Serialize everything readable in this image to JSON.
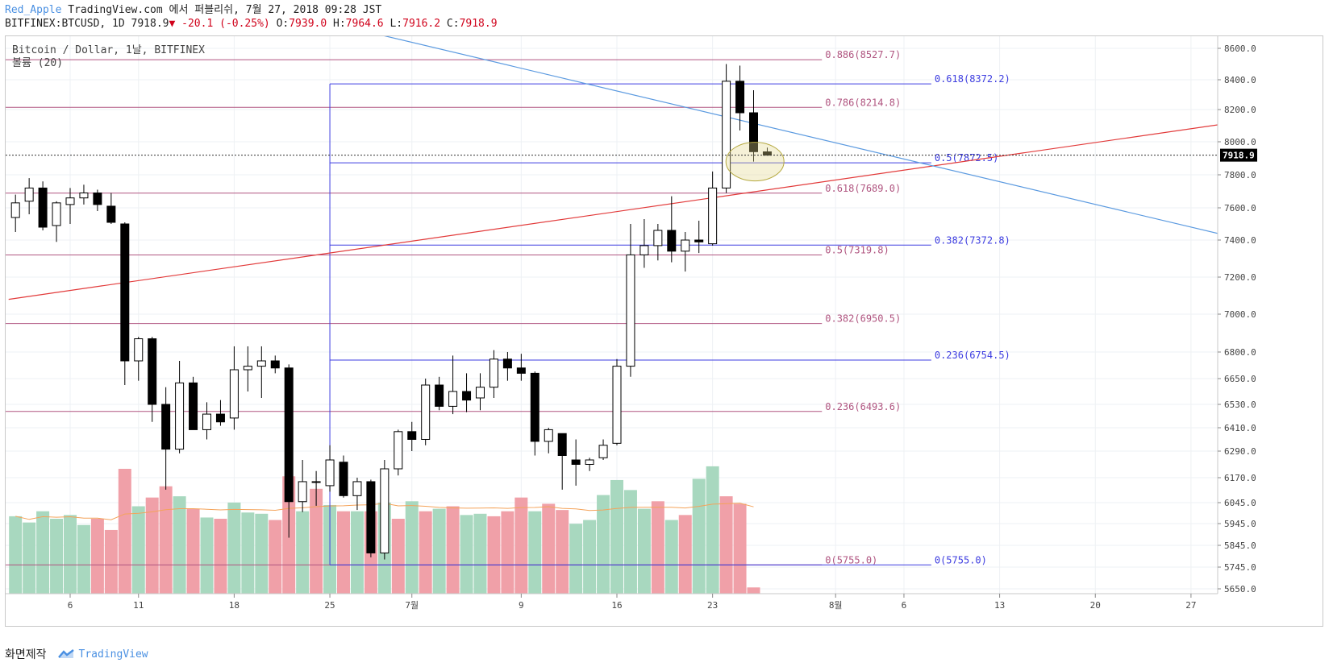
{
  "header": {
    "author": "Red_Apple",
    "published": "TradingView.com 에서 퍼블리쉬, 7월 27, 2018 09:28 JST",
    "symbol_line": "BITFINEX:BTCUSD, 1D 7918.9",
    "change": "▼ -20.1 (-0.25%)",
    "o_label": "O:",
    "o_val": "7939.0",
    "h_label": "H:",
    "h_val": "7964.6",
    "l_label": "L:",
    "l_val": "7916.2",
    "c_label": "C:",
    "c_val": "7918.9"
  },
  "legend": {
    "title": "Bitcoin / Dollar, 1날, BITFINEX",
    "volume": "볼륨 (20)"
  },
  "footer": {
    "made_with": "화면제작",
    "brand": "TradingView"
  },
  "colors": {
    "up_volume": "#a8d8bf",
    "down_volume": "#f0a0a8",
    "fib1": "#b05580",
    "fib2": "#3c3ce0",
    "trend_red": "#e23a3a",
    "trend_blue": "#5b9ae0",
    "ma": "#f4a35a",
    "ellipse": "#b5a940"
  },
  "chart_data": {
    "type": "candlestick",
    "title": "Bitcoin / Dollar, 1날, BITFINEX",
    "last_price": "7918.9",
    "y_ticks": [
      8600,
      8400,
      8200,
      8000,
      7800,
      7600,
      7400,
      7200,
      7000,
      6800,
      6650,
      6530,
      6410,
      6290,
      6170,
      6045,
      5945,
      5845,
      5745,
      5650
    ],
    "y_tick_labels": [
      "8600.0",
      "8400.0",
      "8200.0",
      "8000.0",
      "7800.0",
      "7600.0",
      "7400.0",
      "7200.0",
      "7000.0",
      "6800.0",
      "6650.0",
      "6530.0",
      "6410.0",
      "6290.0",
      "6170.0",
      "6045.0",
      "5945.0",
      "5845.0",
      "5745.0",
      "5650.0"
    ],
    "x_ticks": [
      {
        "day": 0,
        "label": "6"
      },
      {
        "day": 5,
        "label": "11"
      },
      {
        "day": 12,
        "label": "18"
      },
      {
        "day": 19,
        "label": "25"
      },
      {
        "day": 25,
        "label": "7월"
      },
      {
        "day": 33,
        "label": "9"
      },
      {
        "day": 40,
        "label": "16"
      },
      {
        "day": 47,
        "label": "23"
      },
      {
        "day": 56,
        "label": "8월"
      },
      {
        "day": 61,
        "label": "6"
      },
      {
        "day": 68,
        "label": "13"
      },
      {
        "day": 75,
        "label": "20"
      },
      {
        "day": 82,
        "label": "27"
      }
    ],
    "candles": [
      {
        "day": -4,
        "o": 7540,
        "h": 7680,
        "l": 7450,
        "c": 7630
      },
      {
        "day": -3,
        "o": 7640,
        "h": 7780,
        "l": 7560,
        "c": 7720
      },
      {
        "day": -2,
        "o": 7720,
        "h": 7760,
        "l": 7460,
        "c": 7480
      },
      {
        "day": -1,
        "o": 7490,
        "h": 7640,
        "l": 7390,
        "c": 7630
      },
      {
        "day": 0,
        "o": 7620,
        "h": 7720,
        "l": 7500,
        "c": 7660
      },
      {
        "day": 1,
        "o": 7660,
        "h": 7740,
        "l": 7620,
        "c": 7690
      },
      {
        "day": 2,
        "o": 7690,
        "h": 7710,
        "l": 7580,
        "c": 7620
      },
      {
        "day": 3,
        "o": 7610,
        "h": 7690,
        "l": 7500,
        "c": 7510
      },
      {
        "day": 4,
        "o": 7500,
        "h": 7510,
        "l": 6620,
        "c": 6750
      },
      {
        "day": 5,
        "o": 6750,
        "h": 6880,
        "l": 6640,
        "c": 6870
      },
      {
        "day": 6,
        "o": 6870,
        "h": 6880,
        "l": 6440,
        "c": 6530
      },
      {
        "day": 7,
        "o": 6530,
        "h": 6610,
        "l": 6110,
        "c": 6300
      },
      {
        "day": 8,
        "o": 6300,
        "h": 6750,
        "l": 6280,
        "c": 6630
      },
      {
        "day": 9,
        "o": 6630,
        "h": 6660,
        "l": 6400,
        "c": 6400
      },
      {
        "day": 10,
        "o": 6400,
        "h": 6540,
        "l": 6350,
        "c": 6480
      },
      {
        "day": 11,
        "o": 6480,
        "h": 6550,
        "l": 6420,
        "c": 6440
      },
      {
        "day": 12,
        "o": 6460,
        "h": 6830,
        "l": 6400,
        "c": 6700
      },
      {
        "day": 13,
        "o": 6700,
        "h": 6830,
        "l": 6590,
        "c": 6720
      },
      {
        "day": 14,
        "o": 6720,
        "h": 6830,
        "l": 6560,
        "c": 6750
      },
      {
        "day": 15,
        "o": 6750,
        "h": 6780,
        "l": 6680,
        "c": 6710
      },
      {
        "day": 16,
        "o": 6710,
        "h": 6730,
        "l": 5880,
        "c": 6050
      },
      {
        "day": 17,
        "o": 6050,
        "h": 6250,
        "l": 6000,
        "c": 6150
      },
      {
        "day": 18,
        "o": 6150,
        "h": 6200,
        "l": 6030,
        "c": 6150
      },
      {
        "day": 19,
        "o": 6130,
        "h": 6320,
        "l": 6100,
        "c": 6250
      },
      {
        "day": 20,
        "o": 6240,
        "h": 6270,
        "l": 6070,
        "c": 6080
      },
      {
        "day": 21,
        "o": 6080,
        "h": 6170,
        "l": 6010,
        "c": 6150
      },
      {
        "day": 22,
        "o": 6150,
        "h": 6160,
        "l": 5790,
        "c": 5810
      },
      {
        "day": 23,
        "o": 5810,
        "h": 6250,
        "l": 5780,
        "c": 6210
      },
      {
        "day": 24,
        "o": 6210,
        "h": 6400,
        "l": 6180,
        "c": 6390
      },
      {
        "day": 25,
        "o": 6390,
        "h": 6440,
        "l": 6290,
        "c": 6350
      },
      {
        "day": 26,
        "o": 6350,
        "h": 6650,
        "l": 6320,
        "c": 6620
      },
      {
        "day": 27,
        "o": 6620,
        "h": 6660,
        "l": 6500,
        "c": 6520
      },
      {
        "day": 28,
        "o": 6520,
        "h": 6780,
        "l": 6480,
        "c": 6590
      },
      {
        "day": 29,
        "o": 6590,
        "h": 6680,
        "l": 6490,
        "c": 6550
      },
      {
        "day": 30,
        "o": 6560,
        "h": 6680,
        "l": 6500,
        "c": 6610
      },
      {
        "day": 31,
        "o": 6610,
        "h": 6810,
        "l": 6560,
        "c": 6760
      },
      {
        "day": 32,
        "o": 6760,
        "h": 6800,
        "l": 6640,
        "c": 6710
      },
      {
        "day": 33,
        "o": 6710,
        "h": 6790,
        "l": 6640,
        "c": 6680
      },
      {
        "day": 34,
        "o": 6680,
        "h": 6690,
        "l": 6270,
        "c": 6340
      },
      {
        "day": 35,
        "o": 6340,
        "h": 6410,
        "l": 6280,
        "c": 6400
      },
      {
        "day": 36,
        "o": 6380,
        "h": 6380,
        "l": 6110,
        "c": 6270
      },
      {
        "day": 37,
        "o": 6250,
        "h": 6350,
        "l": 6130,
        "c": 6230
      },
      {
        "day": 38,
        "o": 6230,
        "h": 6260,
        "l": 6200,
        "c": 6250
      },
      {
        "day": 39,
        "o": 6260,
        "h": 6350,
        "l": 6250,
        "c": 6320
      },
      {
        "day": 40,
        "o": 6330,
        "h": 6760,
        "l": 6320,
        "c": 6720
      },
      {
        "day": 41,
        "o": 6720,
        "h": 7500,
        "l": 6660,
        "c": 7320
      },
      {
        "day": 42,
        "o": 7320,
        "h": 7530,
        "l": 7250,
        "c": 7370
      },
      {
        "day": 43,
        "o": 7370,
        "h": 7500,
        "l": 7290,
        "c": 7460
      },
      {
        "day": 44,
        "o": 7460,
        "h": 7670,
        "l": 7280,
        "c": 7340
      },
      {
        "day": 45,
        "o": 7340,
        "h": 7450,
        "l": 7230,
        "c": 7400
      },
      {
        "day": 46,
        "o": 7400,
        "h": 7520,
        "l": 7330,
        "c": 7390
      },
      {
        "day": 47,
        "o": 7380,
        "h": 7820,
        "l": 7370,
        "c": 7720
      },
      {
        "day": 48,
        "o": 7720,
        "h": 8500,
        "l": 7690,
        "c": 8390
      },
      {
        "day": 49,
        "o": 8390,
        "h": 8490,
        "l": 8070,
        "c": 8180
      },
      {
        "day": 50,
        "o": 8180,
        "h": 8330,
        "l": 7880,
        "c": 7940
      },
      {
        "day": 51,
        "o": 7939,
        "h": 7964.6,
        "l": 7916.2,
        "c": 7918.9
      }
    ],
    "volumes": [
      {
        "day": -4,
        "up": true,
        "h": 0.62
      },
      {
        "day": -3,
        "up": true,
        "h": 0.57
      },
      {
        "day": -2,
        "up": true,
        "h": 0.66
      },
      {
        "day": -1,
        "up": true,
        "h": 0.6
      },
      {
        "day": 0,
        "up": true,
        "h": 0.63
      },
      {
        "day": 1,
        "up": true,
        "h": 0.55
      },
      {
        "day": 2,
        "up": false,
        "h": 0.6
      },
      {
        "day": 3,
        "up": false,
        "h": 0.51
      },
      {
        "day": 4,
        "up": false,
        "h": 1.0
      },
      {
        "day": 5,
        "up": true,
        "h": 0.7
      },
      {
        "day": 6,
        "up": false,
        "h": 0.77
      },
      {
        "day": 7,
        "up": false,
        "h": 0.86
      },
      {
        "day": 8,
        "up": true,
        "h": 0.78
      },
      {
        "day": 9,
        "up": false,
        "h": 0.68
      },
      {
        "day": 10,
        "up": true,
        "h": 0.61
      },
      {
        "day": 11,
        "up": false,
        "h": 0.6
      },
      {
        "day": 12,
        "up": true,
        "h": 0.73
      },
      {
        "day": 13,
        "up": true,
        "h": 0.65
      },
      {
        "day": 14,
        "up": true,
        "h": 0.64
      },
      {
        "day": 15,
        "up": false,
        "h": 0.59
      },
      {
        "day": 16,
        "up": false,
        "h": 0.94
      },
      {
        "day": 17,
        "up": true,
        "h": 0.66
      },
      {
        "day": 18,
        "up": false,
        "h": 0.84
      },
      {
        "day": 19,
        "up": true,
        "h": 0.71
      },
      {
        "day": 20,
        "up": false,
        "h": 0.66
      },
      {
        "day": 21,
        "up": true,
        "h": 0.66
      },
      {
        "day": 22,
        "up": false,
        "h": 0.66
      },
      {
        "day": 23,
        "up": true,
        "h": 0.73
      },
      {
        "day": 24,
        "up": false,
        "h": 0.6
      },
      {
        "day": 25,
        "up": true,
        "h": 0.74
      },
      {
        "day": 26,
        "up": false,
        "h": 0.66
      },
      {
        "day": 27,
        "up": true,
        "h": 0.68
      },
      {
        "day": 28,
        "up": false,
        "h": 0.7
      },
      {
        "day": 29,
        "up": true,
        "h": 0.63
      },
      {
        "day": 30,
        "up": true,
        "h": 0.64
      },
      {
        "day": 31,
        "up": false,
        "h": 0.62
      },
      {
        "day": 32,
        "up": false,
        "h": 0.66
      },
      {
        "day": 33,
        "up": false,
        "h": 0.77
      },
      {
        "day": 34,
        "up": true,
        "h": 0.66
      },
      {
        "day": 35,
        "up": false,
        "h": 0.72
      },
      {
        "day": 36,
        "up": false,
        "h": 0.67
      },
      {
        "day": 37,
        "up": true,
        "h": 0.56
      },
      {
        "day": 38,
        "up": true,
        "h": 0.59
      },
      {
        "day": 39,
        "up": true,
        "h": 0.79
      },
      {
        "day": 40,
        "up": true,
        "h": 0.91
      },
      {
        "day": 41,
        "up": true,
        "h": 0.83
      },
      {
        "day": 42,
        "up": true,
        "h": 0.68
      },
      {
        "day": 43,
        "up": false,
        "h": 0.74
      },
      {
        "day": 44,
        "up": true,
        "h": 0.59
      },
      {
        "day": 45,
        "up": false,
        "h": 0.63
      },
      {
        "day": 46,
        "up": true,
        "h": 0.92
      },
      {
        "day": 47,
        "up": true,
        "h": 1.02
      },
      {
        "day": 48,
        "up": false,
        "h": 0.78
      },
      {
        "day": 49,
        "up": false,
        "h": 0.72
      },
      {
        "day": 50,
        "up": false,
        "h": 0.05
      }
    ],
    "fib_set1": {
      "from_day": -4,
      "to_day": 55,
      "levels": [
        {
          "label": "0.886(8527.7)",
          "price": 8527.7
        },
        {
          "label": "0.786(8214.8)",
          "price": 8214.8
        },
        {
          "label": "0.618(7689.0)",
          "price": 7689.0
        },
        {
          "label": "0.5(7319.8)",
          "price": 7319.8
        },
        {
          "label": "0.382(6950.5)",
          "price": 6950.5
        },
        {
          "label": "0.236(6493.6)",
          "price": 6493.6
        },
        {
          "label": "0(5755.0)",
          "price": 5755.0
        }
      ]
    },
    "fib_set2": {
      "from_day": 19,
      "to_day": 63,
      "levels": [
        {
          "label": "0.618(8372.2)",
          "price": 8372.2
        },
        {
          "label": "0.5(7872.5)",
          "price": 7872.5
        },
        {
          "label": "0.382(7372.8)",
          "price": 7372.8
        },
        {
          "label": "0.236(6754.5)",
          "price": 6754.5
        },
        {
          "label": "0(5755.0)",
          "price": 5755.0
        }
      ]
    },
    "trendlines": [
      {
        "name": "red-uptrend",
        "d1": -4.5,
        "p1": 7080,
        "d2": 86,
        "p2": 8130
      },
      {
        "name": "blue-downtrend",
        "d1": 22,
        "p1": 8700,
        "d2": 86,
        "p2": 7400
      }
    ]
  }
}
